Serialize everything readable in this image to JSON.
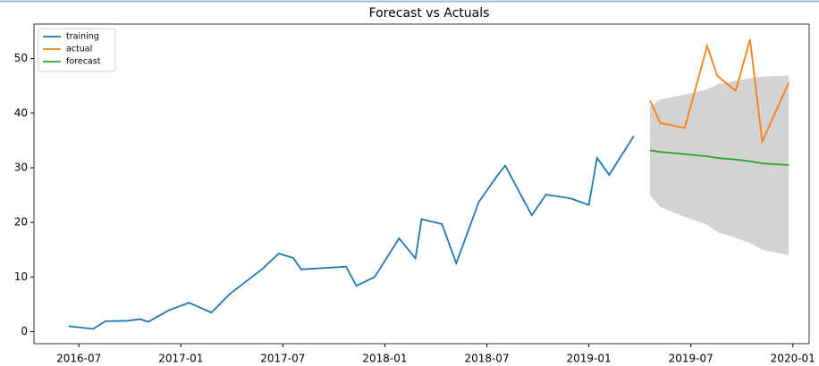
{
  "chart_data": {
    "type": "line",
    "title": "Forecast vs Actuals",
    "xlim": [
      2016.28,
      2020.08
    ],
    "ylim": [
      -2.2,
      56.3
    ],
    "xticks": [
      {
        "value": 2016.5,
        "label": "2016-07"
      },
      {
        "value": 2017.0,
        "label": "2017-01"
      },
      {
        "value": 2017.5,
        "label": "2017-07"
      },
      {
        "value": 2018.0,
        "label": "2018-01"
      },
      {
        "value": 2018.5,
        "label": "2018-07"
      },
      {
        "value": 2019.0,
        "label": "2019-01"
      },
      {
        "value": 2019.5,
        "label": "2019-07"
      },
      {
        "value": 2020.0,
        "label": "2020-01"
      }
    ],
    "yticks": [
      0,
      10,
      20,
      30,
      40,
      50
    ],
    "legend": "upper left",
    "series": [
      {
        "name": "training",
        "color": "#1f77b4",
        "x": [
          2016.45,
          2016.57,
          2016.63,
          2016.74,
          2016.8,
          2016.84,
          2016.94,
          2017.04,
          2017.15,
          2017.24,
          2017.4,
          2017.48,
          2017.55,
          2017.59,
          2017.81,
          2017.86,
          2017.95,
          2018.07,
          2018.15,
          2018.18,
          2018.28,
          2018.35,
          2018.46,
          2018.55,
          2018.59,
          2018.72,
          2018.79,
          2018.91,
          2019.0,
          2019.04,
          2019.1,
          2019.22
        ],
        "values": [
          1.0,
          0.5,
          1.9,
          2.0,
          2.3,
          1.8,
          3.9,
          5.3,
          3.5,
          6.9,
          11.5,
          14.3,
          13.5,
          11.4,
          11.9,
          8.4,
          10.0,
          17.1,
          13.4,
          20.6,
          19.7,
          12.5,
          23.7,
          28.5,
          30.4,
          21.3,
          25.1,
          24.4,
          23.2,
          31.8,
          28.7,
          35.8
        ]
      },
      {
        "name": "actual",
        "color": "#ff7f0e",
        "x": [
          2019.3,
          2019.35,
          2019.47,
          2019.58,
          2019.63,
          2019.72,
          2019.79,
          2019.85,
          2019.98
        ],
        "values": [
          42.3,
          38.2,
          37.3,
          52.3,
          46.8,
          44.1,
          53.5,
          34.8,
          45.6
        ]
      },
      {
        "name": "forecast",
        "color": "#2ca02c",
        "x": [
          2019.3,
          2019.35,
          2019.47,
          2019.58,
          2019.63,
          2019.72,
          2019.79,
          2019.85,
          2019.98
        ],
        "values": [
          33.2,
          32.9,
          32.5,
          32.1,
          31.8,
          31.5,
          31.2,
          30.8,
          30.5
        ]
      }
    ],
    "band": {
      "color": "#d3d3d3",
      "x": [
        2019.3,
        2019.35,
        2019.47,
        2019.58,
        2019.63,
        2019.72,
        2019.79,
        2019.85,
        2019.98
      ],
      "lower": [
        25.0,
        22.8,
        21.0,
        19.6,
        18.2,
        17.2,
        16.2,
        15.0,
        14.0
      ],
      "upper": [
        41.2,
        42.5,
        43.4,
        44.3,
        45.3,
        45.9,
        46.4,
        46.7,
        46.9
      ]
    }
  }
}
